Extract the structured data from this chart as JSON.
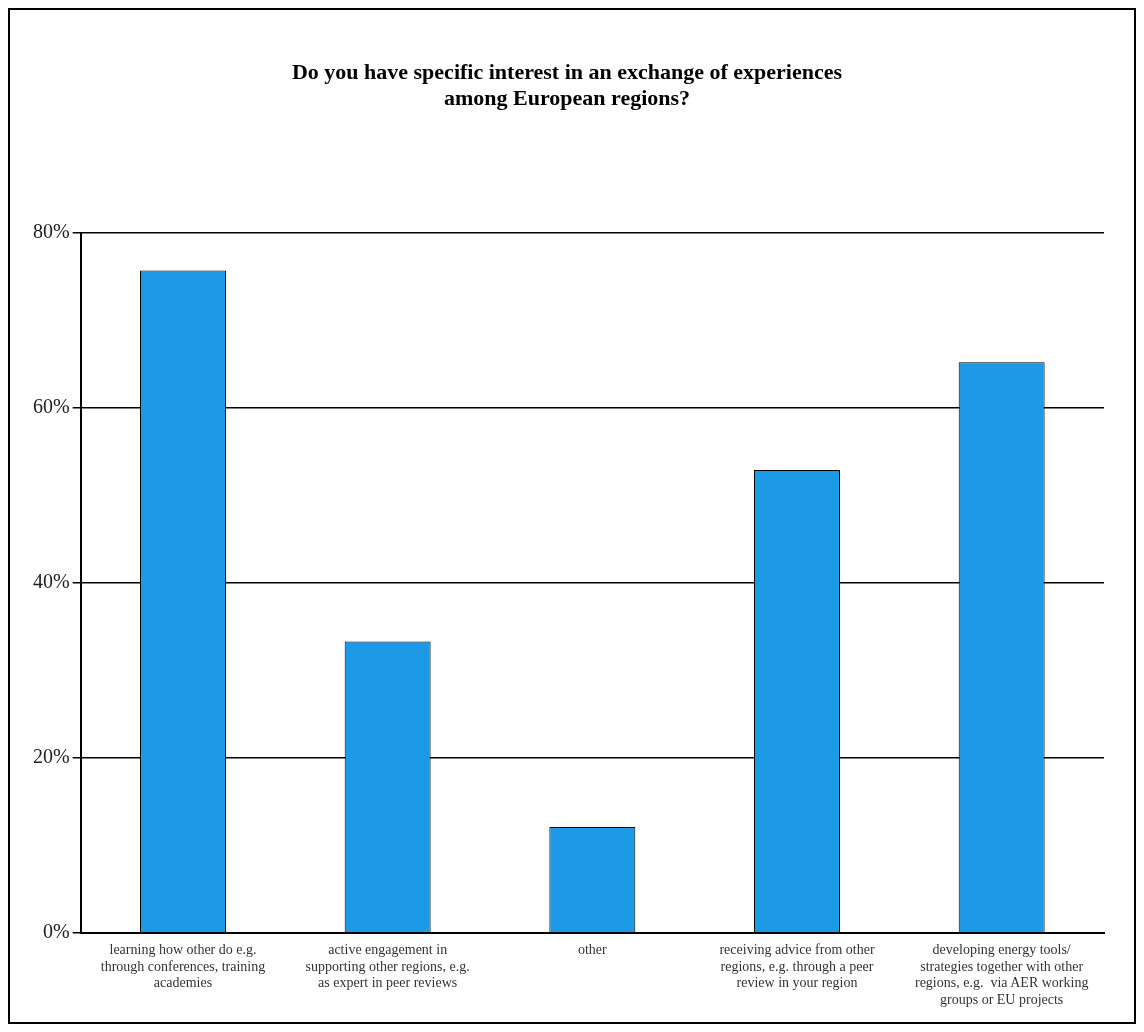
{
  "chart_data": {
    "type": "bar",
    "title": "Do you have specific interest in an exchange of experiences among European regions?",
    "categories": [
      "learning how other do e.g. through conferences, training academies",
      "active engagement in supporting other regions, e.g. as expert in peer reviews",
      "other",
      "receiving advice from other regions, e.g. through a peer review in your region",
      "developing energy tools/ strategies together with other regions, e.g.  via AER working groups or EU projects"
    ],
    "values": [
      75.7,
      33.3,
      12.1,
      52.9,
      65.2
    ],
    "color": "#1c9ae6",
    "ylim": [
      0,
      80
    ],
    "yticks": [
      {
        "value": 0,
        "label": "0%"
      },
      {
        "value": 20,
        "label": "20%"
      },
      {
        "value": 40,
        "label": "40%"
      },
      {
        "value": 60,
        "label": "60%"
      },
      {
        "value": 80,
        "label": "80%"
      }
    ],
    "grid": "y",
    "legend": false
  }
}
